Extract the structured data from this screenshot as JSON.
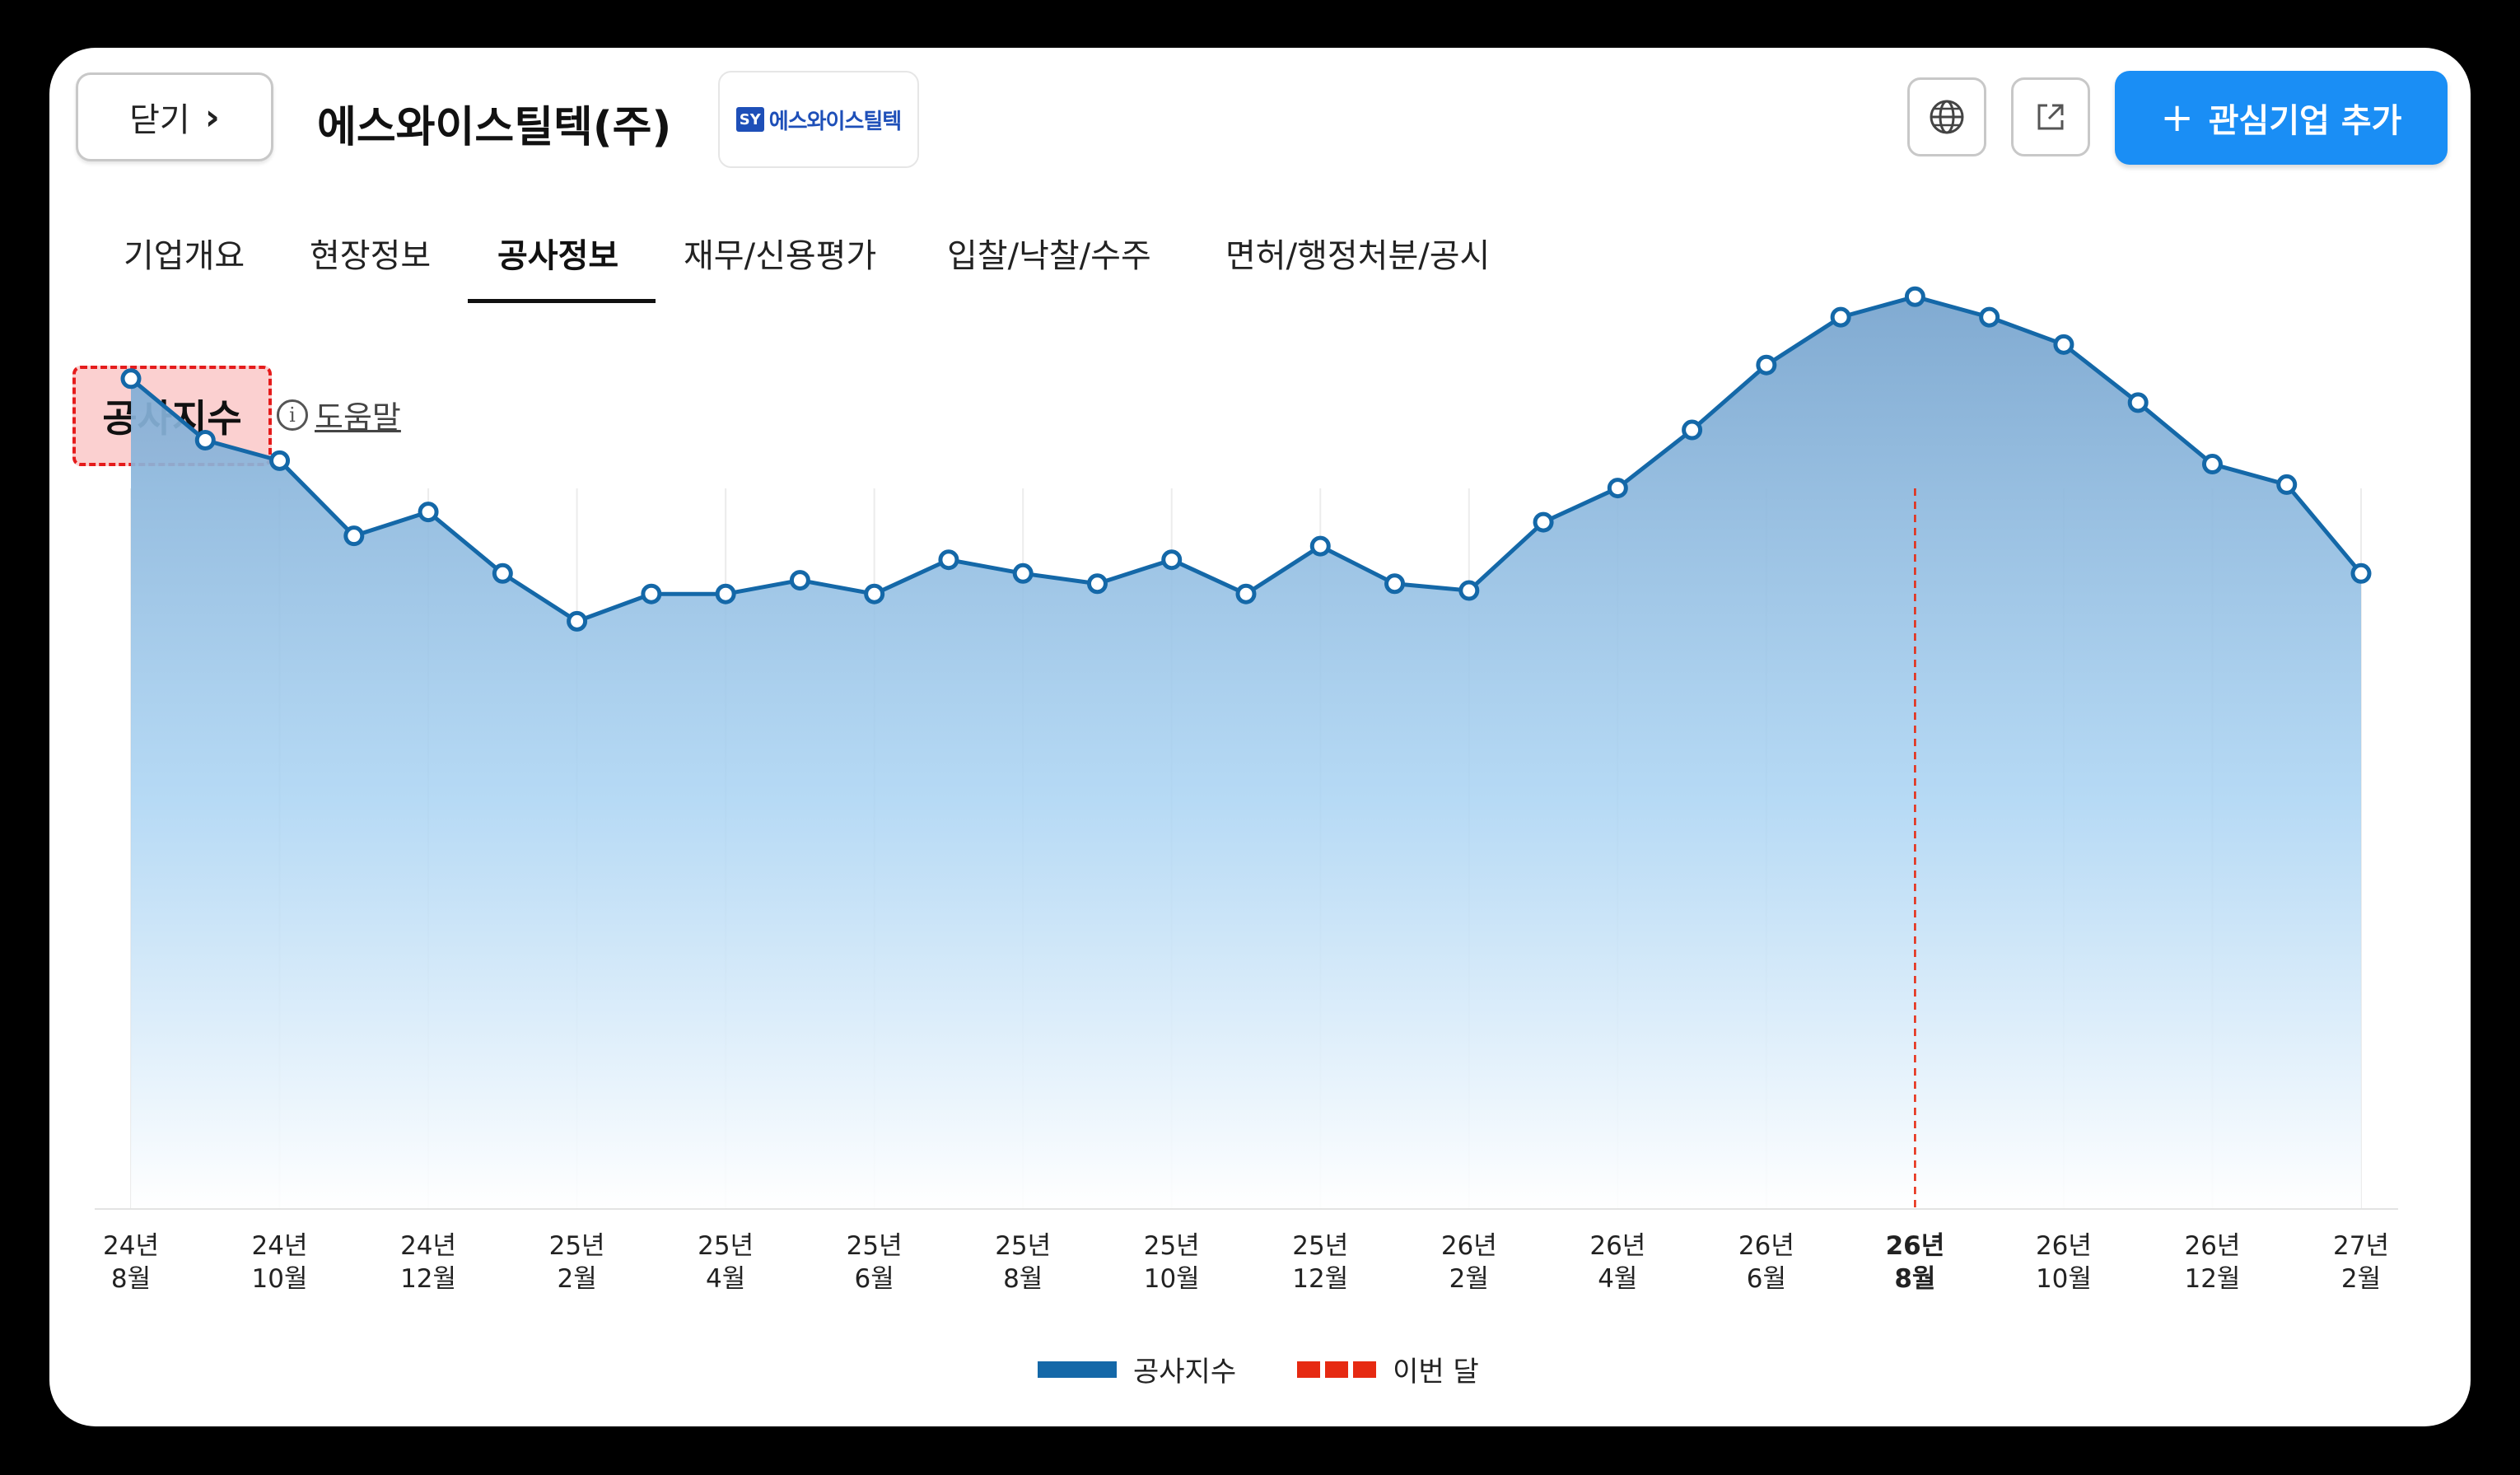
{
  "header": {
    "close_label": "닫기",
    "close_chevron": "›",
    "company_name": "에스와이스틸텍(주)",
    "logo_text": "에스와이스틸텍",
    "logo_mark": "SY",
    "globe_icon": "globe-icon",
    "external_link_icon": "external-link-icon",
    "add_button_plus": "+",
    "add_button_label": "관심기업 추가"
  },
  "tabs": [
    {
      "label": "기업개요",
      "active": false
    },
    {
      "label": "현장정보",
      "active": false
    },
    {
      "label": "공사정보",
      "active": true
    },
    {
      "label": "재무/신용평가",
      "active": false
    },
    {
      "label": "입찰/낙찰/수주",
      "active": false
    },
    {
      "label": "면허/행정처분/공시",
      "active": false
    }
  ],
  "section": {
    "title": "공사지수",
    "help_icon": "i",
    "help_label": "도움말"
  },
  "legend": {
    "series_label": "공사지수",
    "current_label": "이번 달"
  },
  "colors": {
    "accent": "#1a8ef5",
    "line": "#1468a8",
    "current_marker": "#e62a12",
    "title_highlight": "#fbd0d0"
  },
  "chart_data": {
    "type": "area",
    "x": [
      "24년 8월",
      "24년 9월",
      "24년 10월",
      "24년 11월",
      "24년 12월",
      "25년 1월",
      "25년 2월",
      "25년 3월",
      "25년 4월",
      "25년 5월",
      "25년 6월",
      "25년 7월",
      "25년 8월",
      "25년 9월",
      "25년 10월",
      "25년 11월",
      "25년 12월",
      "26년 1월",
      "26년 2월",
      "26년 3월",
      "26년 4월",
      "26년 5월",
      "26년 6월",
      "26년 7월",
      "26년 8월",
      "26년 9월",
      "26년 10월",
      "26년 11월",
      "26년 12월",
      "27년 1월",
      "27년 2월"
    ],
    "tick_labels": [
      [
        "24년",
        "8월"
      ],
      [
        "24년",
        "10월"
      ],
      [
        "24년",
        "12월"
      ],
      [
        "25년",
        "2월"
      ],
      [
        "25년",
        "4월"
      ],
      [
        "25년",
        "6월"
      ],
      [
        "25년",
        "8월"
      ],
      [
        "25년",
        "10월"
      ],
      [
        "25년",
        "12월"
      ],
      [
        "26년",
        "2월"
      ],
      [
        "26년",
        "4월"
      ],
      [
        "26년",
        "6월"
      ],
      [
        "26년",
        "8월"
      ],
      [
        "26년",
        "10월"
      ],
      [
        "26년",
        "12월"
      ],
      [
        "27년",
        "2월"
      ]
    ],
    "series": [
      {
        "name": "공사지수",
        "values": [
          90.5,
          81.5,
          78.5,
          67.5,
          71,
          62,
          55,
          59,
          59,
          61,
          59,
          64,
          62,
          60.5,
          64,
          59,
          66,
          60.5,
          59.5,
          69.5,
          74.5,
          83,
          92.5,
          99.5,
          102.5,
          99.5,
          95.5,
          87,
          78,
          75,
          62
        ]
      }
    ],
    "current_index": 24,
    "ylim": [
      -31,
      110
    ],
    "grid": "vertical",
    "legend_position": "bottom-center"
  }
}
